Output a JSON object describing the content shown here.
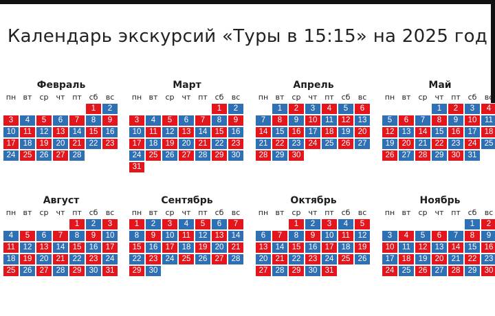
{
  "title": "Календарь экскурсий «Туры в 15:15» на 2025 год",
  "colors": {
    "tour_day": "#2f6fb3",
    "no_tour_day": "#e3151d"
  },
  "weekdays": [
    "пн",
    "вт",
    "ср",
    "чт",
    "пт",
    "сб",
    "вс"
  ],
  "months": [
    {
      "name": "Февраль",
      "start": 5,
      "days": 28,
      "red": [
        1,
        3,
        5,
        7,
        9,
        11,
        13,
        15,
        17,
        19,
        21,
        23,
        25,
        27
      ]
    },
    {
      "name": "Март",
      "start": 5,
      "days": 31,
      "red": [
        1,
        3,
        5,
        7,
        9,
        11,
        13,
        15,
        17,
        19,
        21,
        23,
        25,
        27,
        29,
        31
      ]
    },
    {
      "name": "Апрель",
      "start": 1,
      "days": 30,
      "red": [
        2,
        4,
        6,
        8,
        10,
        12,
        14,
        16,
        18,
        20,
        22,
        24,
        26,
        28,
        30
      ]
    },
    {
      "name": "Май",
      "start": 3,
      "days": 31,
      "red": [
        2,
        4,
        6,
        8,
        10,
        12,
        14,
        16,
        18,
        20,
        22,
        24,
        26,
        28,
        30
      ]
    },
    {
      "name": "Август",
      "start": 4,
      "days": 31,
      "red": [
        1,
        3,
        5,
        7,
        9,
        11,
        13,
        15,
        17,
        19,
        21,
        23,
        25,
        27,
        29,
        31
      ]
    },
    {
      "name": "Сентябрь",
      "start": 0,
      "days": 30,
      "red": [
        1,
        3,
        5,
        7,
        9,
        11,
        13,
        15,
        17,
        19,
        21,
        23,
        25,
        27,
        29
      ]
    },
    {
      "name": "Октябрь",
      "start": 2,
      "days": 31,
      "red": [
        1,
        3,
        5,
        7,
        9,
        11,
        13,
        15,
        17,
        19,
        21,
        23,
        25,
        27,
        29,
        31
      ]
    },
    {
      "name": "Ноябрь",
      "start": 5,
      "days": 30,
      "red": [
        2,
        4,
        6,
        8,
        10,
        12,
        14,
        16,
        18,
        20,
        22,
        24,
        26,
        28,
        30
      ]
    }
  ]
}
